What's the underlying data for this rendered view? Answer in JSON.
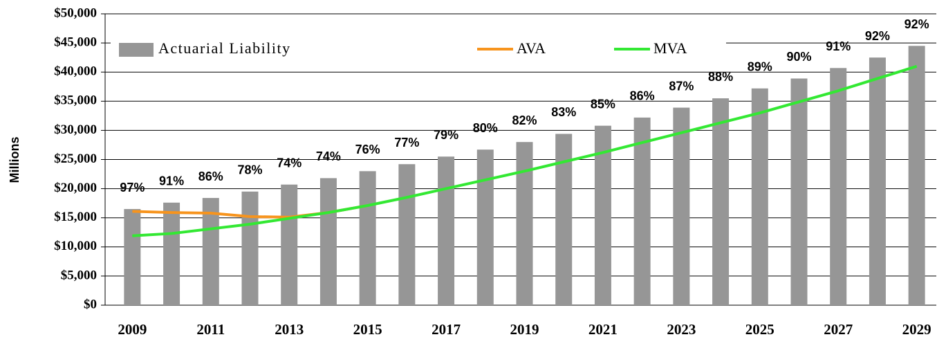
{
  "chart_data": {
    "type": "bar_line",
    "y_axis_label": "Millions",
    "categories": [
      "2009",
      null,
      "2011",
      null,
      "2013",
      null,
      "2015",
      null,
      "2017",
      null,
      "2019",
      null,
      "2021",
      null,
      "2023",
      null,
      "2025",
      null,
      "2027",
      null,
      "2029"
    ],
    "series": [
      {
        "name": "Actuarial Liability",
        "kind": "bar",
        "color": "#969696",
        "values": [
          16500,
          17600,
          18400,
          19500,
          20700,
          21800,
          23000,
          24200,
          25500,
          26700,
          28000,
          29400,
          30800,
          32200,
          33900,
          35500,
          37200,
          38900,
          40700,
          42500,
          44500
        ]
      },
      {
        "name": "AVA",
        "kind": "line",
        "color": "#f7941d",
        "values": [
          16100,
          15900,
          15800,
          15200,
          15100,
          15900,
          17100,
          null,
          null,
          null,
          null,
          null,
          null,
          null,
          null,
          null,
          null,
          null,
          null,
          null,
          null
        ]
      },
      {
        "name": "MVA",
        "kind": "line",
        "color": "#33e833",
        "values": [
          11900,
          12300,
          13100,
          13900,
          14900,
          15900,
          17100,
          18500,
          20000,
          21500,
          23000,
          24600,
          26200,
          27900,
          29600,
          31300,
          33000,
          34900,
          36800,
          38900,
          41000
        ]
      }
    ],
    "funded_ratio": {
      "values": [
        97,
        91,
        86,
        78,
        74,
        74,
        76,
        77,
        79,
        80,
        82,
        83,
        85,
        86,
        87,
        88,
        89,
        90,
        91,
        92,
        92
      ],
      "value_labels": [
        "97%",
        "91%",
        "86%",
        "78%",
        "74%",
        "74%",
        "76%",
        "77%",
        "79%",
        "80%",
        "82%",
        "83%",
        "85%",
        "86%",
        "87%",
        "88%",
        "89%",
        "90%",
        "91%",
        "92%",
        "92%"
      ]
    },
    "ylim": [
      0,
      50000
    ],
    "yticks": [
      {
        "value": 0,
        "label": "$0"
      },
      {
        "value": 5000,
        "label": "$5,000"
      },
      {
        "value": 10000,
        "label": "$10,000"
      },
      {
        "value": 15000,
        "label": "$15,000"
      },
      {
        "value": 20000,
        "label": "$20,000"
      },
      {
        "value": 25000,
        "label": "$25,000"
      },
      {
        "value": 30000,
        "label": "$30,000"
      },
      {
        "value": 35000,
        "label": "$35,000"
      },
      {
        "value": 40000,
        "label": "$40,000"
      },
      {
        "value": 45000,
        "label": "$45,000"
      },
      {
        "value": 50000,
        "label": "$50,000"
      }
    ],
    "grid": true
  }
}
